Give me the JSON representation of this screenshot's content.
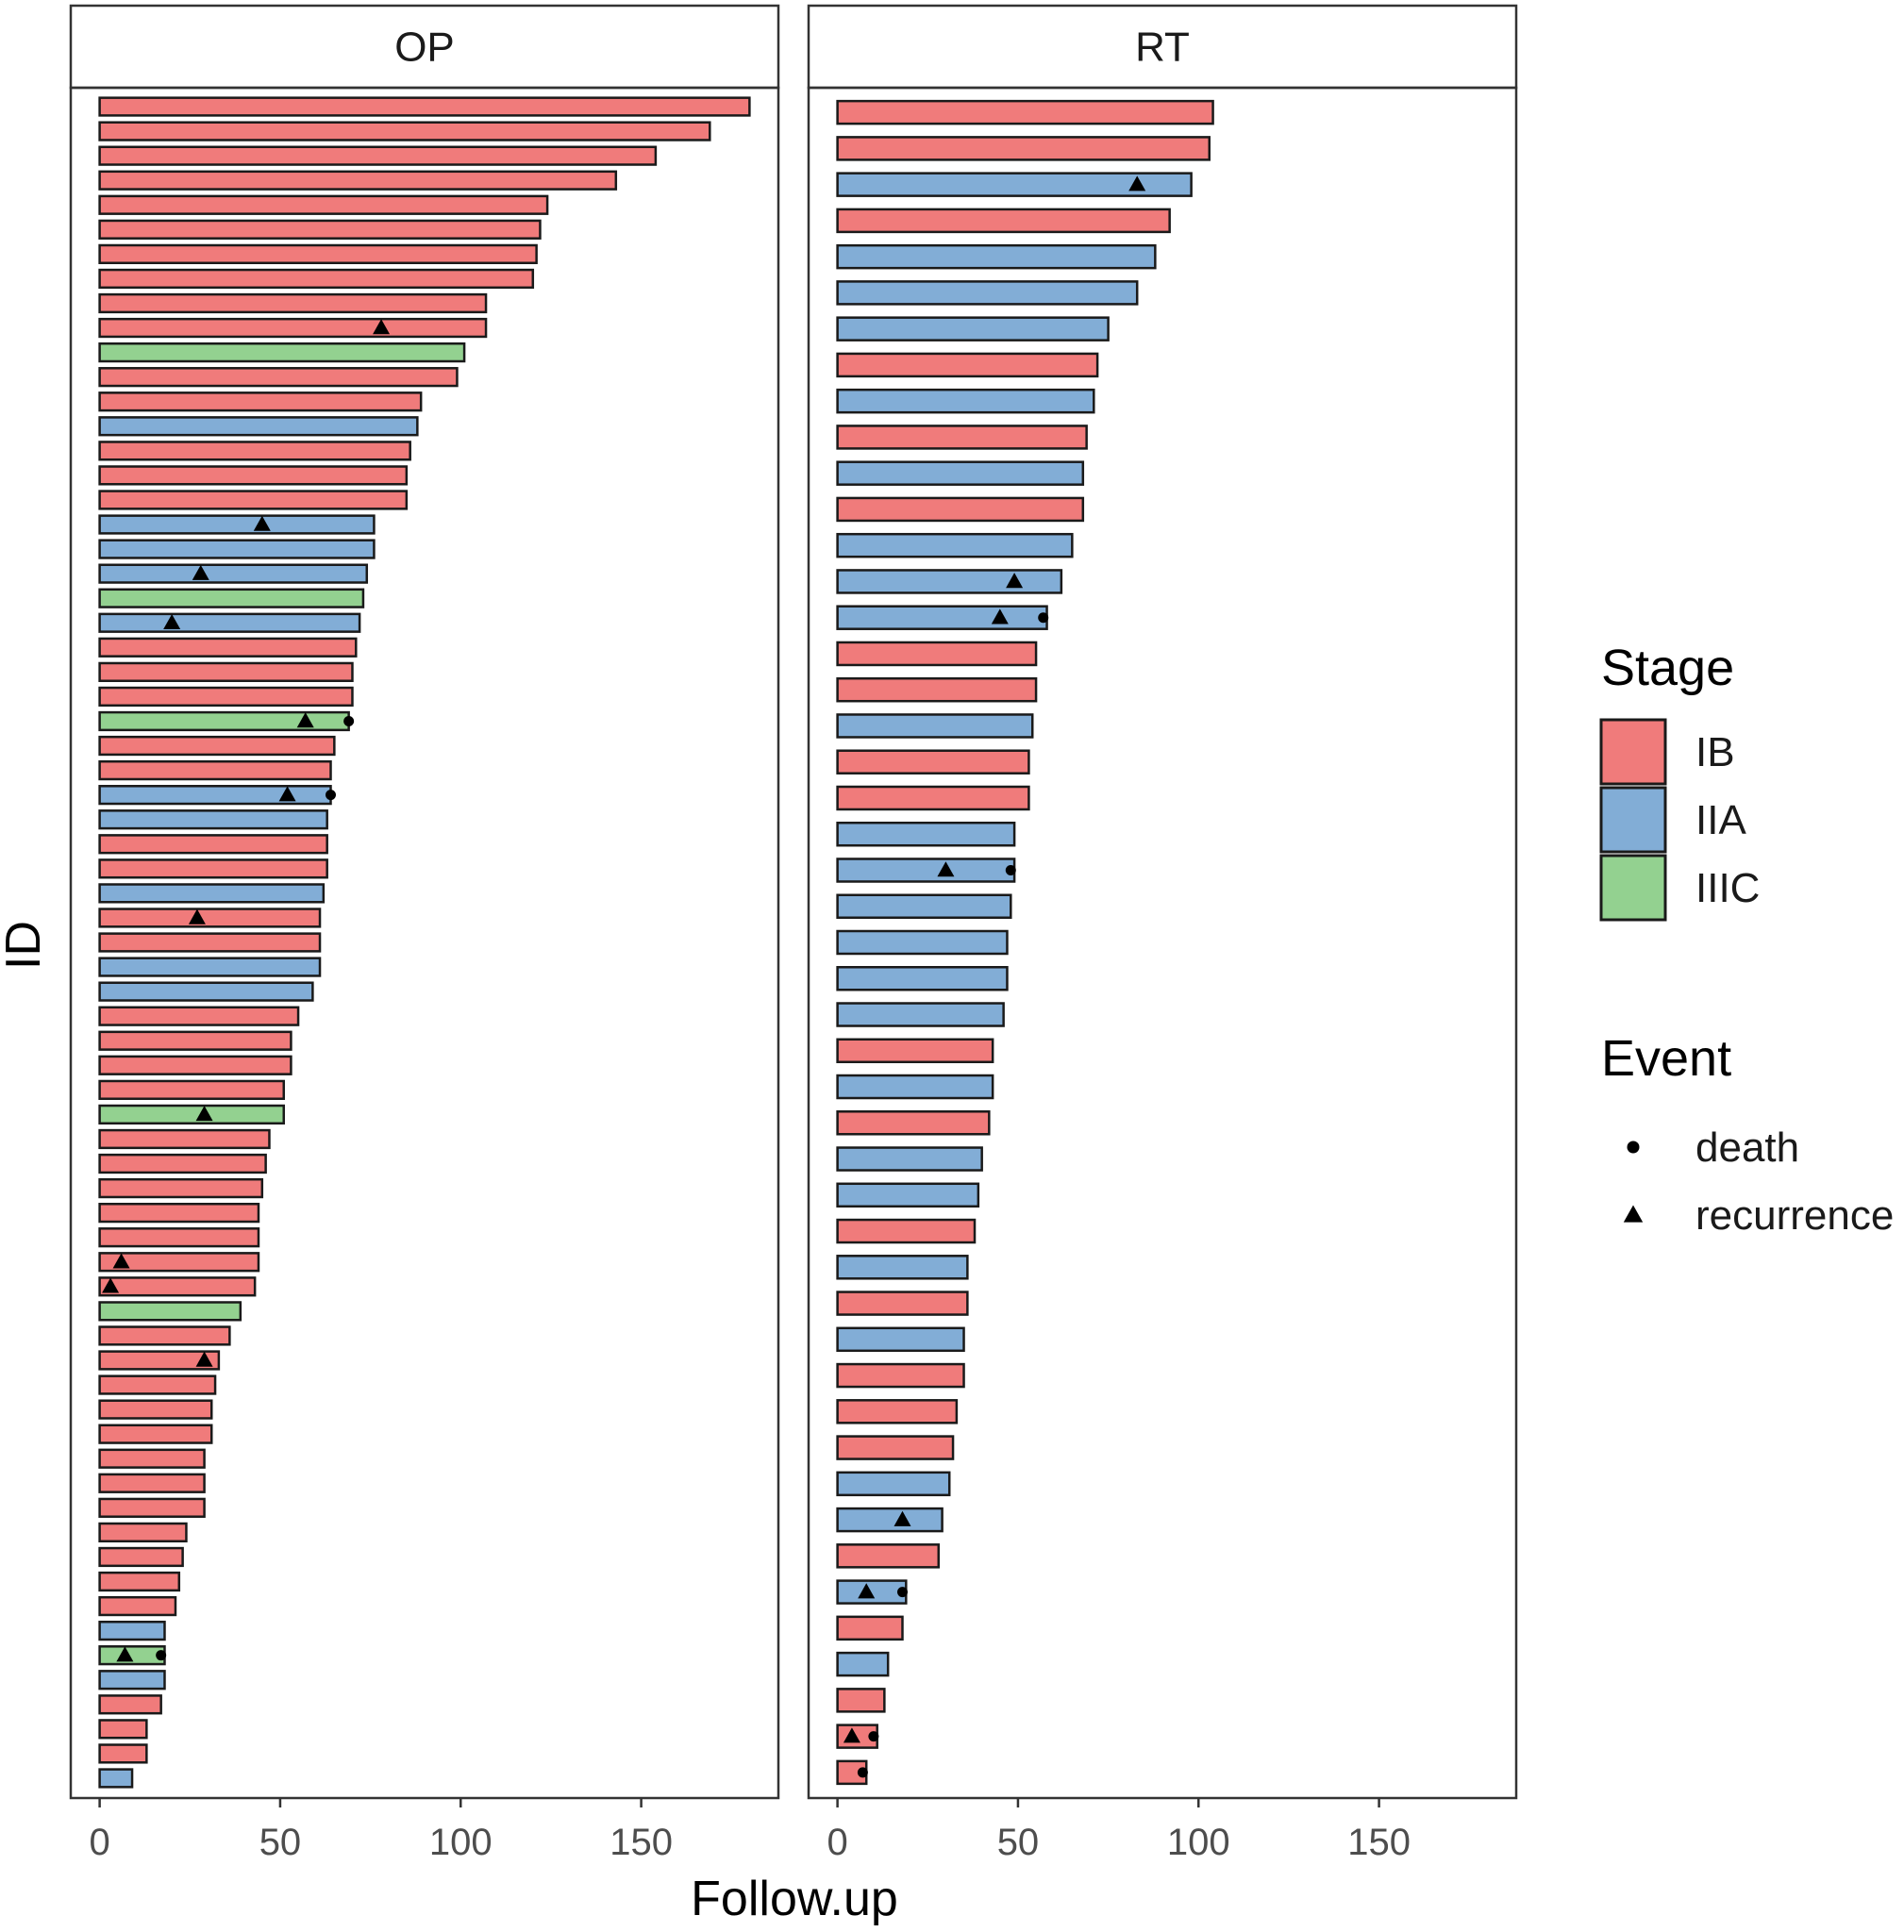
{
  "chart_data": {
    "type": "bar",
    "orientation": "horizontal",
    "title": "",
    "xlabel": "Follow.up",
    "ylabel": "ID",
    "xlim": [
      -8,
      188
    ],
    "xticks": [
      0,
      50,
      100,
      150
    ],
    "grid": false,
    "legend_placement": "right",
    "stage_colors": {
      "IB": "#F07B7B",
      "IIA": "#82ADD6",
      "IIIC": "#93D190"
    },
    "legend": {
      "stage_title": "Stage",
      "stage_entries": [
        "IB",
        "IIA",
        "IIIC"
      ],
      "event_title": "Event",
      "event_entries": [
        {
          "label": "death",
          "shape": "circle"
        },
        {
          "label": "recurrence",
          "shape": "triangle"
        }
      ]
    },
    "panels": [
      {
        "name": "OP",
        "bars": [
          {
            "value": 180,
            "stage": "IB"
          },
          {
            "value": 169,
            "stage": "IB"
          },
          {
            "value": 154,
            "stage": "IB"
          },
          {
            "value": 143,
            "stage": "IB"
          },
          {
            "value": 124,
            "stage": "IB"
          },
          {
            "value": 122,
            "stage": "IB"
          },
          {
            "value": 121,
            "stage": "IB"
          },
          {
            "value": 120,
            "stage": "IB"
          },
          {
            "value": 107,
            "stage": "IB"
          },
          {
            "value": 107,
            "stage": "IB",
            "recurrence": 78
          },
          {
            "value": 101,
            "stage": "IIIC"
          },
          {
            "value": 99,
            "stage": "IB"
          },
          {
            "value": 89,
            "stage": "IB"
          },
          {
            "value": 88,
            "stage": "IIA"
          },
          {
            "value": 86,
            "stage": "IB"
          },
          {
            "value": 85,
            "stage": "IB"
          },
          {
            "value": 85,
            "stage": "IB"
          },
          {
            "value": 76,
            "stage": "IIA",
            "recurrence": 45
          },
          {
            "value": 76,
            "stage": "IIA"
          },
          {
            "value": 74,
            "stage": "IIA",
            "recurrence": 28
          },
          {
            "value": 73,
            "stage": "IIIC"
          },
          {
            "value": 72,
            "stage": "IIA",
            "recurrence": 20
          },
          {
            "value": 71,
            "stage": "IB"
          },
          {
            "value": 70,
            "stage": "IB"
          },
          {
            "value": 70,
            "stage": "IB"
          },
          {
            "value": 69,
            "stage": "IIIC",
            "recurrence": 57,
            "death": 69
          },
          {
            "value": 65,
            "stage": "IB"
          },
          {
            "value": 64,
            "stage": "IB"
          },
          {
            "value": 64,
            "stage": "IIA",
            "recurrence": 52,
            "death": 64
          },
          {
            "value": 63,
            "stage": "IIA"
          },
          {
            "value": 63,
            "stage": "IB"
          },
          {
            "value": 63,
            "stage": "IB"
          },
          {
            "value": 62,
            "stage": "IIA"
          },
          {
            "value": 61,
            "stage": "IB",
            "recurrence": 27
          },
          {
            "value": 61,
            "stage": "IB"
          },
          {
            "value": 61,
            "stage": "IIA"
          },
          {
            "value": 59,
            "stage": "IIA"
          },
          {
            "value": 55,
            "stage": "IB"
          },
          {
            "value": 53,
            "stage": "IB"
          },
          {
            "value": 53,
            "stage": "IB"
          },
          {
            "value": 51,
            "stage": "IB"
          },
          {
            "value": 51,
            "stage": "IIIC",
            "recurrence": 29
          },
          {
            "value": 47,
            "stage": "IB"
          },
          {
            "value": 46,
            "stage": "IB"
          },
          {
            "value": 45,
            "stage": "IB"
          },
          {
            "value": 44,
            "stage": "IB"
          },
          {
            "value": 44,
            "stage": "IB"
          },
          {
            "value": 44,
            "stage": "IB",
            "recurrence": 6
          },
          {
            "value": 43,
            "stage": "IB",
            "recurrence": 3
          },
          {
            "value": 39,
            "stage": "IIIC"
          },
          {
            "value": 36,
            "stage": "IB"
          },
          {
            "value": 33,
            "stage": "IB",
            "recurrence": 29
          },
          {
            "value": 32,
            "stage": "IB"
          },
          {
            "value": 31,
            "stage": "IB"
          },
          {
            "value": 31,
            "stage": "IB"
          },
          {
            "value": 29,
            "stage": "IB"
          },
          {
            "value": 29,
            "stage": "IB"
          },
          {
            "value": 29,
            "stage": "IB"
          },
          {
            "value": 24,
            "stage": "IB"
          },
          {
            "value": 23,
            "stage": "IB"
          },
          {
            "value": 22,
            "stage": "IB"
          },
          {
            "value": 21,
            "stage": "IB"
          },
          {
            "value": 18,
            "stage": "IIA"
          },
          {
            "value": 18,
            "stage": "IIIC",
            "recurrence": 7,
            "death": 17
          },
          {
            "value": 18,
            "stage": "IIA"
          },
          {
            "value": 17,
            "stage": "IB"
          },
          {
            "value": 13,
            "stage": "IB"
          },
          {
            "value": 13,
            "stage": "IB"
          },
          {
            "value": 9,
            "stage": "IIA"
          }
        ]
      },
      {
        "name": "RT",
        "bars": [
          {
            "value": 104,
            "stage": "IB"
          },
          {
            "value": 103,
            "stage": "IB"
          },
          {
            "value": 98,
            "stage": "IIA",
            "recurrence": 83
          },
          {
            "value": 92,
            "stage": "IB"
          },
          {
            "value": 88,
            "stage": "IIA"
          },
          {
            "value": 83,
            "stage": "IIA"
          },
          {
            "value": 75,
            "stage": "IIA"
          },
          {
            "value": 72,
            "stage": "IB"
          },
          {
            "value": 71,
            "stage": "IIA"
          },
          {
            "value": 69,
            "stage": "IB"
          },
          {
            "value": 68,
            "stage": "IIA"
          },
          {
            "value": 68,
            "stage": "IB"
          },
          {
            "value": 65,
            "stage": "IIA"
          },
          {
            "value": 62,
            "stage": "IIA",
            "recurrence": 49
          },
          {
            "value": 58,
            "stage": "IIA",
            "recurrence": 45,
            "death": 57
          },
          {
            "value": 55,
            "stage": "IB"
          },
          {
            "value": 55,
            "stage": "IB"
          },
          {
            "value": 54,
            "stage": "IIA"
          },
          {
            "value": 53,
            "stage": "IB"
          },
          {
            "value": 53,
            "stage": "IB"
          },
          {
            "value": 49,
            "stage": "IIA"
          },
          {
            "value": 49,
            "stage": "IIA",
            "recurrence": 30,
            "death": 48
          },
          {
            "value": 48,
            "stage": "IIA"
          },
          {
            "value": 47,
            "stage": "IIA"
          },
          {
            "value": 47,
            "stage": "IIA"
          },
          {
            "value": 46,
            "stage": "IIA"
          },
          {
            "value": 43,
            "stage": "IB"
          },
          {
            "value": 43,
            "stage": "IIA"
          },
          {
            "value": 42,
            "stage": "IB"
          },
          {
            "value": 40,
            "stage": "IIA"
          },
          {
            "value": 39,
            "stage": "IIA"
          },
          {
            "value": 38,
            "stage": "IB"
          },
          {
            "value": 36,
            "stage": "IIA"
          },
          {
            "value": 36,
            "stage": "IB"
          },
          {
            "value": 35,
            "stage": "IIA"
          },
          {
            "value": 35,
            "stage": "IB"
          },
          {
            "value": 33,
            "stage": "IB"
          },
          {
            "value": 32,
            "stage": "IB"
          },
          {
            "value": 31,
            "stage": "IIA"
          },
          {
            "value": 29,
            "stage": "IIA",
            "recurrence": 18
          },
          {
            "value": 28,
            "stage": "IB"
          },
          {
            "value": 19,
            "stage": "IIA",
            "recurrence": 8,
            "death": 18
          },
          {
            "value": 18,
            "stage": "IB"
          },
          {
            "value": 14,
            "stage": "IIA"
          },
          {
            "value": 13,
            "stage": "IB"
          },
          {
            "value": 11,
            "stage": "IB",
            "recurrence": 4,
            "death": 10
          },
          {
            "value": 8,
            "stage": "IB",
            "death": 7
          }
        ]
      }
    ]
  }
}
